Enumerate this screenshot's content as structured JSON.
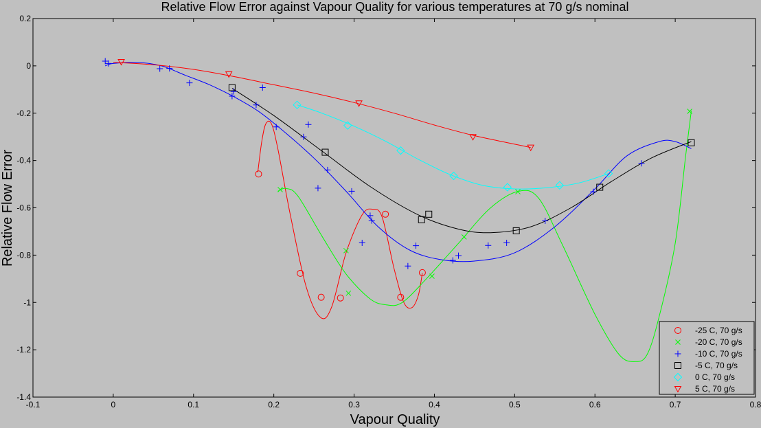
{
  "chart_data": {
    "type": "scatter",
    "title": "Relative Flow Error against Vapour Quality for various temperatures at 70 g/s nominal",
    "xlabel": "Vapour Quality",
    "ylabel": "Relative Flow Error",
    "xlim": [
      -0.1,
      0.8
    ],
    "ylim": [
      -1.4,
      0.2
    ],
    "xticks": [
      "-0.1",
      "0",
      "0.1",
      "0.2",
      "0.3",
      "0.4",
      "0.5",
      "0.6",
      "0.7",
      "0.8"
    ],
    "yticks": [
      "0.2",
      "0",
      "-0.2",
      "-0.4",
      "-0.6",
      "-0.8",
      "-1",
      "-1.2",
      "-1.4"
    ],
    "grid": false,
    "legend_position": "bottom-right",
    "series": [
      {
        "name": "-25 C, 70 g/s",
        "marker": "circle",
        "color": "#ff0000",
        "points": [
          [
            0.181,
            -0.457
          ],
          [
            0.233,
            -0.877
          ],
          [
            0.259,
            -0.978
          ],
          [
            0.283,
            -0.981
          ],
          [
            0.339,
            -0.627
          ],
          [
            0.358,
            -0.978
          ],
          [
            0.385,
            -0.874
          ]
        ],
        "fit": [
          [
            0.18,
            -0.45
          ],
          [
            0.185,
            -0.32
          ],
          [
            0.19,
            -0.245
          ],
          [
            0.197,
            -0.245
          ],
          [
            0.205,
            -0.35
          ],
          [
            0.22,
            -0.62
          ],
          [
            0.24,
            -0.93
          ],
          [
            0.258,
            -1.063
          ],
          [
            0.272,
            -1.02
          ],
          [
            0.29,
            -0.79
          ],
          [
            0.31,
            -0.63
          ],
          [
            0.323,
            -0.606
          ],
          [
            0.335,
            -0.64
          ],
          [
            0.35,
            -0.86
          ],
          [
            0.362,
            -1.0
          ],
          [
            0.372,
            -1.022
          ],
          [
            0.38,
            -0.97
          ],
          [
            0.385,
            -0.876
          ]
        ]
      },
      {
        "name": "-20 C, 70 g/s",
        "marker": "x",
        "color": "#00ff00",
        "points": [
          [
            0.208,
            -0.523
          ],
          [
            0.29,
            -0.781
          ],
          [
            0.293,
            -0.961
          ],
          [
            0.397,
            -0.889
          ],
          [
            0.437,
            -0.723
          ],
          [
            0.504,
            -0.532
          ],
          [
            0.718,
            -0.192
          ]
        ],
        "fit": [
          [
            0.205,
            -0.53
          ],
          [
            0.215,
            -0.518
          ],
          [
            0.23,
            -0.55
          ],
          [
            0.26,
            -0.72
          ],
          [
            0.29,
            -0.88
          ],
          [
            0.32,
            -0.985
          ],
          [
            0.34,
            -1.01
          ],
          [
            0.36,
            -1.0
          ],
          [
            0.39,
            -0.9
          ],
          [
            0.43,
            -0.75
          ],
          [
            0.47,
            -0.6
          ],
          [
            0.505,
            -0.53
          ],
          [
            0.53,
            -0.56
          ],
          [
            0.56,
            -0.76
          ],
          [
            0.6,
            -1.05
          ],
          [
            0.63,
            -1.22
          ],
          [
            0.65,
            -1.25
          ],
          [
            0.665,
            -1.22
          ],
          [
            0.68,
            -1.06
          ],
          [
            0.7,
            -0.75
          ],
          [
            0.713,
            -0.38
          ],
          [
            0.72,
            -0.19
          ]
        ]
      },
      {
        "name": "-10 C, 70 g/s",
        "marker": "plus",
        "color": "#0000ff",
        "points": [
          [
            -0.01,
            0.02
          ],
          [
            -0.006,
            0.01
          ],
          [
            0.058,
            -0.012
          ],
          [
            0.07,
            -0.011
          ],
          [
            0.095,
            -0.072
          ],
          [
            0.148,
            -0.128
          ],
          [
            0.15,
            -0.108
          ],
          [
            0.178,
            -0.165
          ],
          [
            0.186,
            -0.092
          ],
          [
            0.203,
            -0.258
          ],
          [
            0.237,
            -0.3
          ],
          [
            0.243,
            -0.248
          ],
          [
            0.255,
            -0.517
          ],
          [
            0.267,
            -0.44
          ],
          [
            0.297,
            -0.53
          ],
          [
            0.31,
            -0.748
          ],
          [
            0.32,
            -0.633
          ],
          [
            0.322,
            -0.654
          ],
          [
            0.367,
            -0.846
          ],
          [
            0.377,
            -0.76
          ],
          [
            0.423,
            -0.822
          ],
          [
            0.43,
            -0.802
          ],
          [
            0.467,
            -0.759
          ],
          [
            0.49,
            -0.748
          ],
          [
            0.538,
            -0.655
          ],
          [
            0.598,
            -0.532
          ],
          [
            0.658,
            -0.412
          ]
        ],
        "fit": [
          [
            -0.01,
            0.0
          ],
          [
            0.0,
            0.01
          ],
          [
            0.03,
            0.015
          ],
          [
            0.06,
            0.0
          ],
          [
            0.09,
            -0.04
          ],
          [
            0.12,
            -0.08
          ],
          [
            0.15,
            -0.13
          ],
          [
            0.18,
            -0.19
          ],
          [
            0.21,
            -0.27
          ],
          [
            0.25,
            -0.39
          ],
          [
            0.29,
            -0.53
          ],
          [
            0.33,
            -0.68
          ],
          [
            0.37,
            -0.78
          ],
          [
            0.41,
            -0.82
          ],
          [
            0.45,
            -0.825
          ],
          [
            0.5,
            -0.79
          ],
          [
            0.55,
            -0.68
          ],
          [
            0.6,
            -0.52
          ],
          [
            0.64,
            -0.38
          ],
          [
            0.68,
            -0.32
          ],
          [
            0.7,
            -0.32
          ],
          [
            0.72,
            -0.35
          ]
        ]
      },
      {
        "name": "-5 C, 70 g/s",
        "marker": "square",
        "color": "#000000",
        "points": [
          [
            0.148,
            -0.092
          ],
          [
            0.264,
            -0.365
          ],
          [
            0.384,
            -0.65
          ],
          [
            0.393,
            -0.627
          ],
          [
            0.502,
            -0.697
          ],
          [
            0.606,
            -0.513
          ],
          [
            0.72,
            -0.325
          ]
        ],
        "fit": [
          [
            0.148,
            -0.095
          ],
          [
            0.2,
            -0.21
          ],
          [
            0.26,
            -0.36
          ],
          [
            0.32,
            -0.51
          ],
          [
            0.38,
            -0.63
          ],
          [
            0.43,
            -0.69
          ],
          [
            0.47,
            -0.705
          ],
          [
            0.52,
            -0.68
          ],
          [
            0.57,
            -0.6
          ],
          [
            0.62,
            -0.49
          ],
          [
            0.67,
            -0.39
          ],
          [
            0.72,
            -0.32
          ]
        ]
      },
      {
        "name": "0 C, 70 g/s",
        "marker": "diamond",
        "color": "#00ffff",
        "points": [
          [
            0.229,
            -0.165
          ],
          [
            0.292,
            -0.252
          ],
          [
            0.358,
            -0.358
          ],
          [
            0.424,
            -0.465
          ],
          [
            0.491,
            -0.513
          ],
          [
            0.556,
            -0.505
          ],
          [
            0.617,
            -0.455
          ]
        ],
        "fit": [
          [
            0.229,
            -0.165
          ],
          [
            0.26,
            -0.2
          ],
          [
            0.3,
            -0.255
          ],
          [
            0.34,
            -0.32
          ],
          [
            0.38,
            -0.395
          ],
          [
            0.42,
            -0.46
          ],
          [
            0.46,
            -0.505
          ],
          [
            0.5,
            -0.52
          ],
          [
            0.54,
            -0.515
          ],
          [
            0.58,
            -0.495
          ],
          [
            0.617,
            -0.455
          ]
        ]
      },
      {
        "name": "5 C, 70 g/s",
        "marker": "triangle-down",
        "color": "#ff0000",
        "points": [
          [
            0.01,
            0.017
          ],
          [
            0.144,
            -0.035
          ],
          [
            0.306,
            -0.158
          ],
          [
            0.448,
            -0.3
          ],
          [
            0.52,
            -0.345
          ]
        ],
        "fit": [
          [
            0.0,
            0.015
          ],
          [
            0.05,
            0.005
          ],
          [
            0.1,
            -0.015
          ],
          [
            0.15,
            -0.045
          ],
          [
            0.2,
            -0.08
          ],
          [
            0.25,
            -0.115
          ],
          [
            0.3,
            -0.155
          ],
          [
            0.35,
            -0.2
          ],
          [
            0.4,
            -0.25
          ],
          [
            0.45,
            -0.295
          ],
          [
            0.52,
            -0.345
          ]
        ]
      }
    ]
  }
}
